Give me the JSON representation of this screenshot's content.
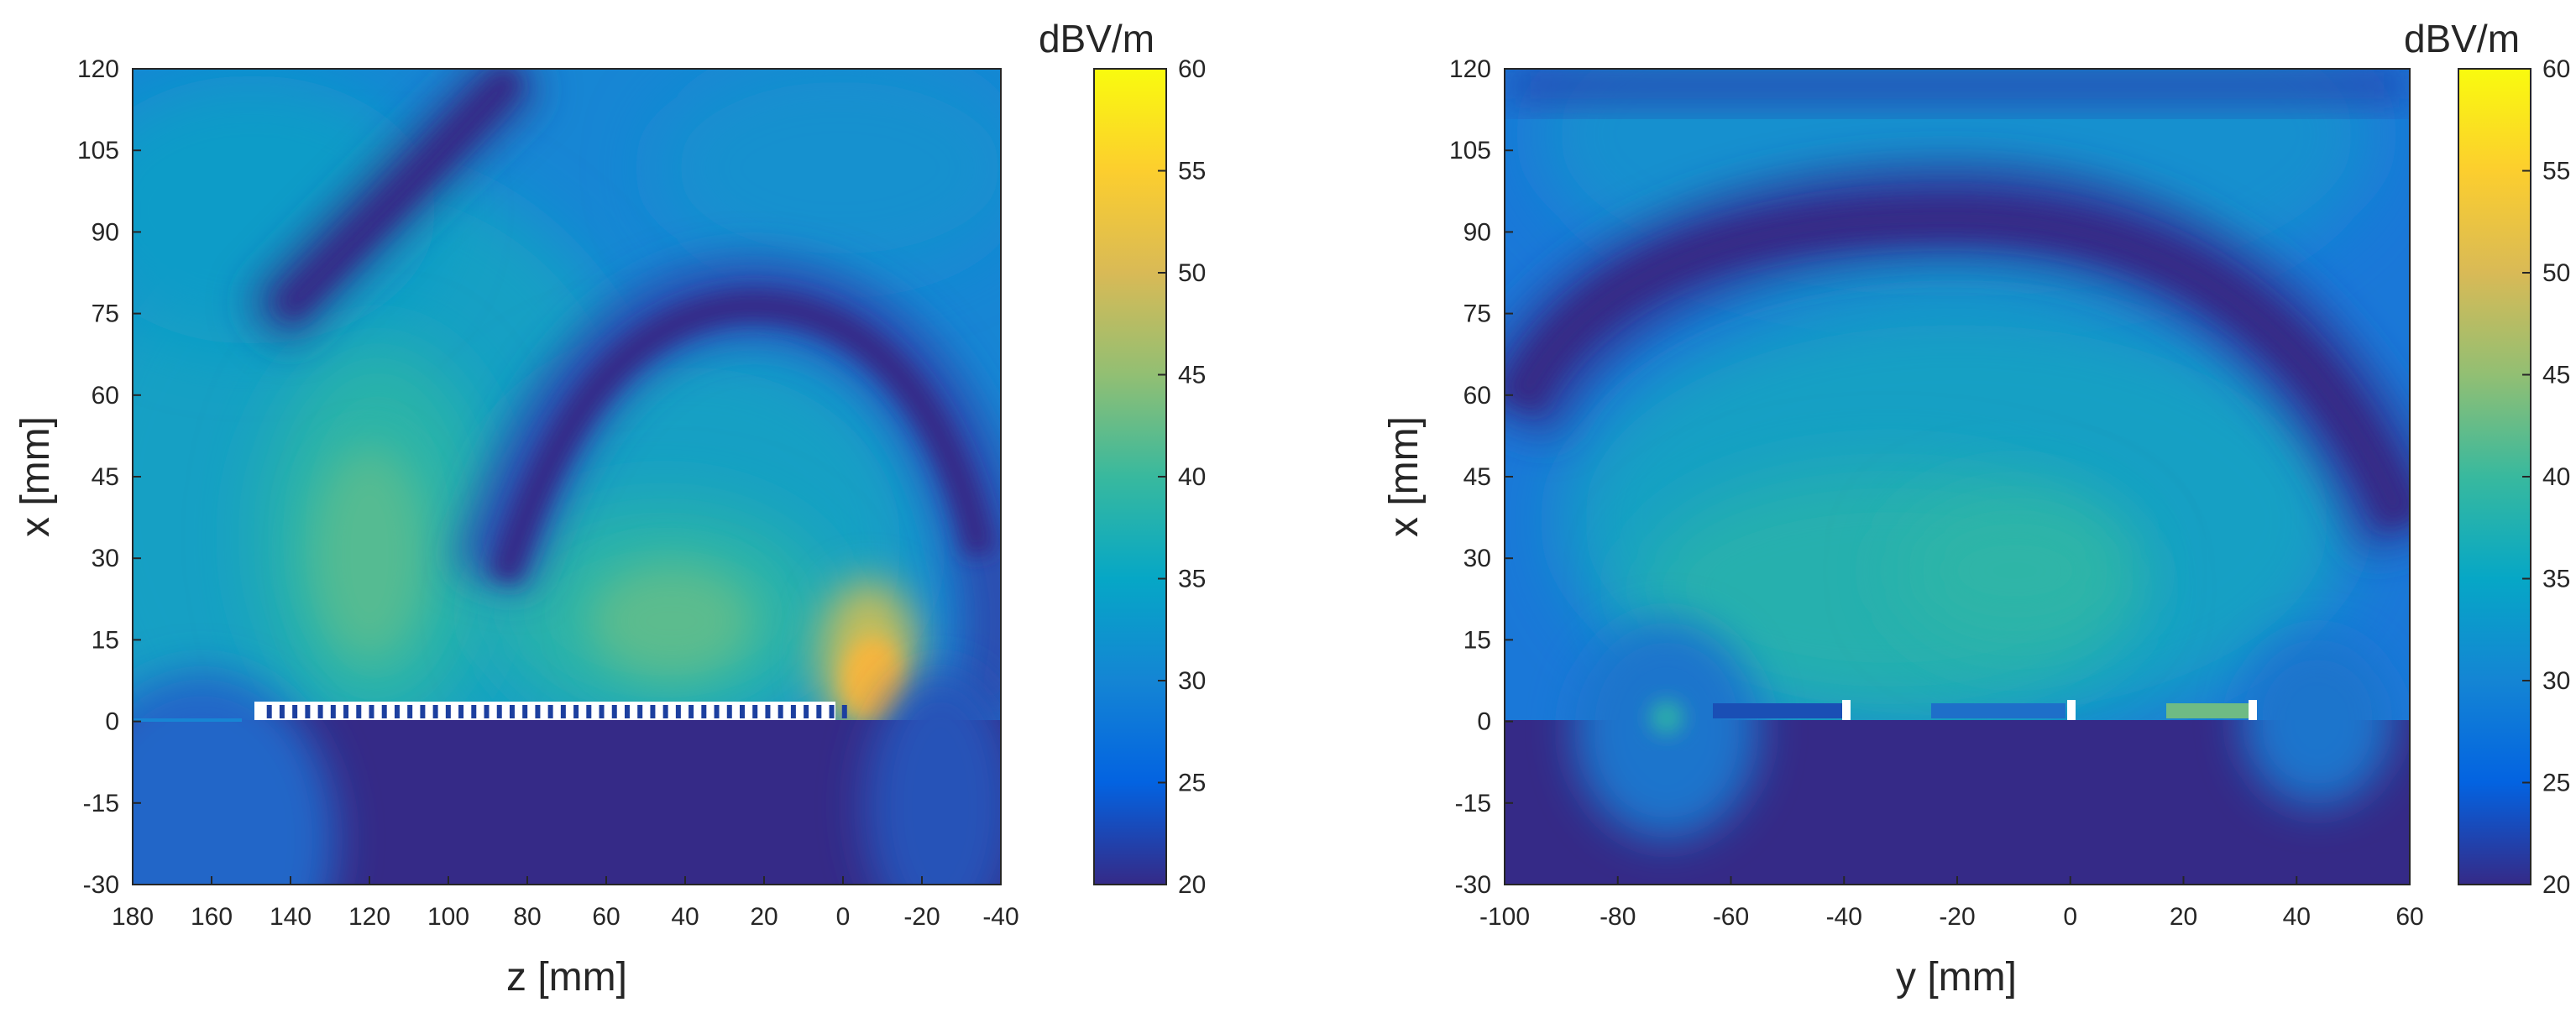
{
  "chart_data": [
    {
      "type": "heatmap",
      "title": "",
      "xlabel": "z [mm]",
      "ylabel": "x [mm]",
      "xlim": [
        180,
        -40
      ],
      "ylim": [
        -30,
        120
      ],
      "x_reversed": true,
      "xticks": [
        180,
        160,
        140,
        120,
        100,
        80,
        60,
        40,
        20,
        0,
        -20,
        -40
      ],
      "yticks": [
        -30,
        -15,
        0,
        15,
        30,
        45,
        60,
        75,
        90,
        105,
        120
      ],
      "colorbar": {
        "label": "dBV/m",
        "range": [
          20,
          60
        ],
        "ticks": [
          20,
          25,
          30,
          35,
          40,
          45,
          50,
          55,
          60
        ],
        "colormap": [
          "#352a87",
          "#0363e1",
          "#1485d4",
          "#06a7c6",
          "#38b99e",
          "#92bf73",
          "#d9ba56",
          "#fcce2e",
          "#f9fb0e"
        ]
      },
      "hotspots": [
        {
          "x": 120,
          "y": 30,
          "value": 40
        },
        {
          "x": 45,
          "y": 20,
          "value": 41
        },
        {
          "x": -8,
          "y": 5,
          "value": 52
        }
      ],
      "null_bands": [
        "diagonal band from z≈150,x≈85 to z≈60,x≈120",
        "arc from z≈100,x≈40 over z≈20,x≈77 to z≈-15,x≈40"
      ],
      "structure": {
        "z_from": 147,
        "z_to": -2,
        "x": 3
      }
    },
    {
      "type": "heatmap",
      "title": "",
      "xlabel": "y [mm]",
      "ylabel": "x [mm]",
      "xlim": [
        -100,
        60
      ],
      "ylim": [
        -30,
        120
      ],
      "x_reversed": false,
      "xticks": [
        -100,
        -80,
        -60,
        -40,
        -20,
        0,
        20,
        40,
        60
      ],
      "yticks": [
        -30,
        -15,
        0,
        15,
        30,
        45,
        60,
        75,
        90,
        105,
        120
      ],
      "colorbar": {
        "label": "dBV/m",
        "range": [
          20,
          60
        ],
        "ticks": [
          20,
          25,
          30,
          35,
          40,
          45,
          50,
          55,
          60
        ],
        "colormap": [
          "#352a87",
          "#0363e1",
          "#1485d4",
          "#06a7c6",
          "#38b99e",
          "#92bf73",
          "#d9ba56",
          "#fcce2e",
          "#f9fb0e"
        ]
      },
      "hotspots": [
        {
          "x": -25,
          "y": 30,
          "value": 37
        },
        {
          "x": 10,
          "y": 25,
          "value": 38
        }
      ],
      "null_bands": [
        "arc from y≈-100,x≈60 over y≈-25,x≈75 to y≈60,x≈40"
      ],
      "structure": {
        "y_from": -63,
        "y_to": 40,
        "x": 3,
        "gaps_at": [
          -40,
          0,
          40
        ]
      }
    }
  ]
}
